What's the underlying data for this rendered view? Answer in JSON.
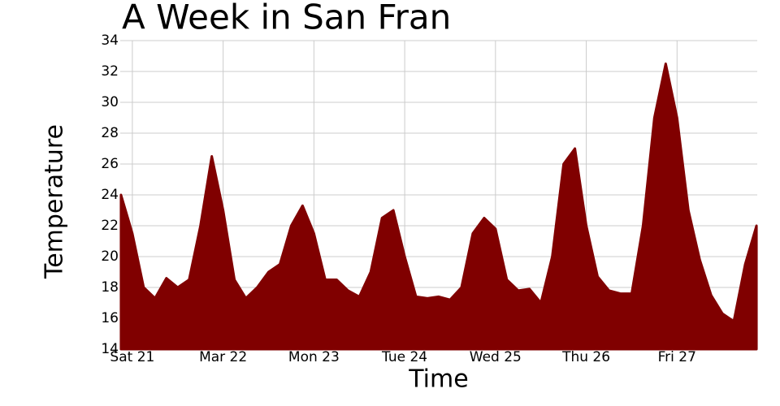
{
  "chart_data": {
    "type": "area",
    "title": "A Week in San Fran",
    "x_label": "Time",
    "y_label": "Temperature",
    "x": [
      -3,
      0,
      3,
      6,
      9,
      12,
      15,
      18,
      21,
      24,
      27,
      30,
      33,
      36,
      39,
      42,
      45,
      48,
      51,
      54,
      57,
      60,
      63,
      66,
      69,
      72,
      75,
      78,
      81,
      84,
      87,
      90,
      93,
      96,
      99,
      102,
      105,
      108,
      111,
      114,
      117,
      120,
      123,
      126,
      129,
      132,
      135,
      138,
      141,
      144,
      147,
      150,
      153,
      156,
      159,
      162,
      165
    ],
    "values": [
      24,
      21.5,
      18,
      17.3,
      18.6,
      18,
      18.5,
      22,
      26.5,
      23,
      18.5,
      17.3,
      18,
      19,
      19.5,
      22,
      23.3,
      21.5,
      18.5,
      18.5,
      17.8,
      17.4,
      19,
      22.5,
      23,
      20,
      17.4,
      17.3,
      17.4,
      17.2,
      18,
      21.5,
      22.5,
      21.8,
      18.5,
      17.8,
      17.9,
      17,
      20,
      26,
      27,
      22,
      18.7,
      17.8,
      17.6,
      17.6,
      22,
      29,
      32.5,
      29,
      23,
      19.8,
      17.5,
      16.3,
      15.8,
      19.5,
      22
    ],
    "color": "#800000",
    "xlim": [
      -3.2,
      165.2
    ],
    "xticks": [
      {
        "value": 0,
        "label": "Sat 21"
      },
      {
        "value": 24,
        "label": "Mar 22"
      },
      {
        "value": 48,
        "label": "Mon 23"
      },
      {
        "value": 72,
        "label": "Tue 24"
      },
      {
        "value": 96,
        "label": "Wed 25"
      },
      {
        "value": 120,
        "label": "Thu 26"
      },
      {
        "value": 144,
        "label": "Fri 27"
      }
    ],
    "ylim": [
      14,
      34
    ],
    "yticks": [
      14,
      16,
      18,
      20,
      22,
      24,
      26,
      28,
      30,
      32,
      34
    ],
    "grid": true
  }
}
